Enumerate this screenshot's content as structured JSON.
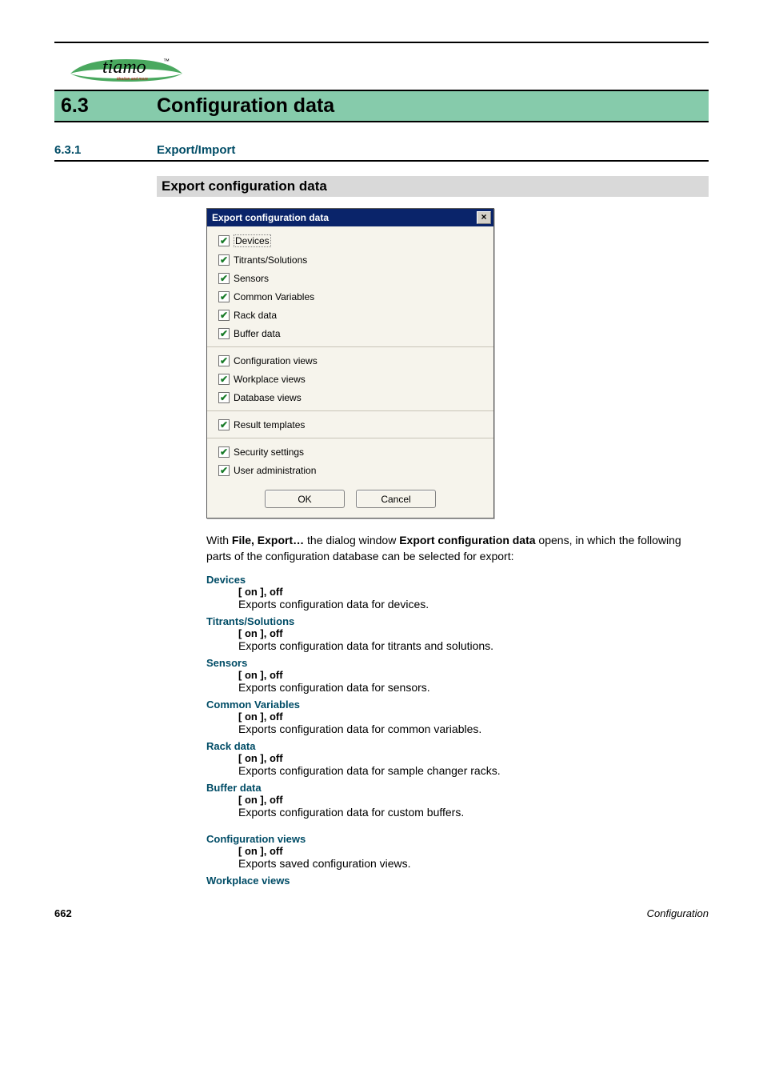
{
  "colors": {
    "section_bg": "#86cbab",
    "tertiary_bg": "#d9d9d9",
    "rule": "#000000",
    "heading_color": "#004c66",
    "dialog_title_bg": "#0a246a",
    "dialog_bg": "#f6f4ec",
    "check_mark": "#1a7c2a"
  },
  "logo": {
    "brand": "tiamo",
    "tm": "™",
    "tagline": "titration and more"
  },
  "section": {
    "number": "6.3",
    "title": "Configuration data"
  },
  "subsection": {
    "number": "6.3.1",
    "title": "Export/Import"
  },
  "tertiary_heading": "Export configuration data",
  "dialog": {
    "title": "Export configuration data",
    "close_glyph": "×",
    "groups": [
      [
        "Devices",
        "Titrants/Solutions",
        "Sensors",
        "Common Variables",
        "Rack data",
        "Buffer data"
      ],
      [
        "Configuration views",
        "Workplace views",
        "Database views"
      ],
      [
        "Result templates"
      ],
      [
        "Security settings",
        "User administration"
      ]
    ],
    "selected_index": 0,
    "ok": "OK",
    "cancel": "Cancel"
  },
  "intro": {
    "pre": "With ",
    "b1": "File, Export…",
    "mid": " the dialog window ",
    "b2": "Export configuration data",
    "post": " opens, in which the following parts of the configuration database can be selected for export:"
  },
  "params": [
    {
      "name": "Devices",
      "opt": "[ on ], off",
      "desc": "Exports configuration data for devices."
    },
    {
      "name": "Titrants/Solutions",
      "opt": "[ on ], off",
      "desc": "Exports configuration data for titrants and solutions."
    },
    {
      "name": "Sensors",
      "opt": "[ on ], off",
      "desc": "Exports configuration data for sensors."
    },
    {
      "name": "Common Variables",
      "opt": "[ on ], off",
      "desc": "Exports configuration data for common variables."
    },
    {
      "name": "Rack data",
      "opt": "[ on ], off",
      "desc": "Exports configuration data for sample changer racks."
    },
    {
      "name": "Buffer data",
      "opt": "[ on ], off",
      "desc": "Exports configuration data for custom buffers."
    }
  ],
  "params2": [
    {
      "name": "Configuration views",
      "opt": "[ on ], off",
      "desc": "Exports saved configuration views."
    },
    {
      "name": "Workplace views",
      "opt": "",
      "desc": ""
    }
  ],
  "footer": {
    "page": "662",
    "label": "Configuration"
  }
}
